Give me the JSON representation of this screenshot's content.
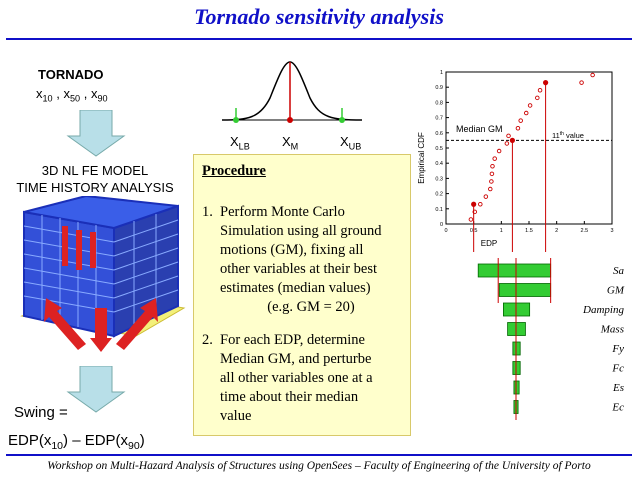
{
  "title": "Tornado sensitivity analysis",
  "footer": "Workshop on Multi-Hazard Analysis of Structures using OpenSees – Faculty of Engineering of the University of Porto",
  "tornado": {
    "heading": "TORNADO",
    "x_symbol": "x",
    "sub_10": "10",
    "sub_50": "50",
    "sub_90": "90",
    "sep": ","
  },
  "model_label": {
    "line1": "3D NL FE MODEL",
    "line2": "TIME HISTORY ANALYSIS"
  },
  "swing": {
    "label": "Swing =",
    "formula_a": "EDP(x",
    "sub_a": "10",
    "formula_b": ") – EDP(x",
    "sub_b": "90",
    "formula_c": ")"
  },
  "bell": {
    "x": "X",
    "lb": "LB",
    "m": "M",
    "ub": "UB",
    "colors": {
      "curve": "#000000",
      "tails": "#33cc33",
      "median": "#cc0000"
    }
  },
  "procedure": {
    "heading": "Procedure",
    "item1": {
      "num": "1.",
      "lines": [
        "Perform Monte Carlo",
        "Simulation using all ground",
        "motions (GM), fixing all",
        "other variables at their best",
        "estimates (median values)"
      ],
      "example": "(e.g. GM = 20)"
    },
    "item2": {
      "num": "2.",
      "lines": [
        "For each EDP, determine",
        "Median GM, and perturbe",
        "all other variables one at a",
        "time about their median",
        "value"
      ]
    }
  },
  "cdf_chart": {
    "ylabel": "Empirical CDF",
    "xlabel": "EDP",
    "yticks": [
      "0",
      "0.1",
      "0.2",
      "0.3",
      "0.4",
      "0.5",
      "0.6",
      "0.7",
      "0.8",
      "0.9",
      "1"
    ],
    "xticks": [
      "0",
      "0.5",
      "1",
      "1.5",
      "2",
      "2.5",
      "3"
    ],
    "median_label": "Median GM",
    "eleventh_label": "11",
    "eleventh_sup": "th",
    "eleventh_suffix": " value"
  },
  "chart_data": {
    "type": "scatter",
    "xlabel": "EDP",
    "ylabel": "Empirical CDF",
    "xlim": [
      0,
      3
    ],
    "ylim": [
      0,
      1
    ],
    "points": [
      [
        0.45,
        0.03
      ],
      [
        0.52,
        0.08
      ],
      [
        0.62,
        0.13
      ],
      [
        0.72,
        0.18
      ],
      [
        0.8,
        0.23
      ],
      [
        0.82,
        0.28
      ],
      [
        0.83,
        0.33
      ],
      [
        0.84,
        0.38
      ],
      [
        0.88,
        0.43
      ],
      [
        0.96,
        0.48
      ],
      [
        1.1,
        0.53
      ],
      [
        1.13,
        0.58
      ],
      [
        1.3,
        0.63
      ],
      [
        1.35,
        0.68
      ],
      [
        1.45,
        0.73
      ],
      [
        1.52,
        0.78
      ],
      [
        1.65,
        0.83
      ],
      [
        1.7,
        0.88
      ],
      [
        2.45,
        0.93
      ],
      [
        2.65,
        0.98
      ]
    ],
    "highlight": [
      [
        0.5,
        0.13
      ],
      [
        1.2,
        0.55
      ],
      [
        1.8,
        0.93
      ]
    ],
    "median_threshold": 0.55,
    "colors": {
      "points": "#cc0000",
      "lines": "#cc0000"
    }
  },
  "tornado_bars": {
    "type": "bar",
    "categories": [
      "Sa",
      "GM",
      "Damping",
      "Mass",
      "Fy",
      "Fc",
      "Es",
      "Ec"
    ],
    "low": [
      -36,
      -16,
      -12,
      -8,
      -3,
      -3,
      -2,
      -2
    ],
    "high": [
      33,
      33,
      13,
      9,
      4,
      4,
      3,
      2
    ],
    "colors": {
      "fill": "#33cc33",
      "border": "#006600",
      "axis": "#cc0000"
    }
  }
}
